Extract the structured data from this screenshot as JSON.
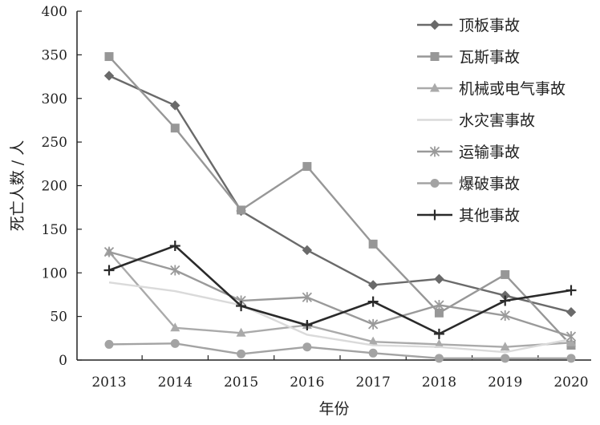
{
  "chart_data": {
    "type": "line",
    "title": "",
    "xlabel": "年份",
    "ylabel": "死亡人数 / 人",
    "categories": [
      "2013",
      "2014",
      "2015",
      "2016",
      "2017",
      "2018",
      "2019",
      "2020"
    ],
    "ylim": [
      0,
      400
    ],
    "yticks": [
      0,
      50,
      100,
      150,
      200,
      250,
      300,
      350,
      400
    ],
    "grid": false,
    "legend_position": "top-right",
    "series": [
      {
        "name": "顶板事故",
        "marker": "diamond",
        "color": "#6a6a6a",
        "values": [
          326,
          292,
          171,
          126,
          86,
          93,
          74,
          55
        ]
      },
      {
        "name": "瓦斯事故",
        "marker": "square",
        "color": "#979797",
        "values": [
          348,
          266,
          172,
          222,
          133,
          54,
          98,
          17
        ]
      },
      {
        "name": "机械或电气事故",
        "marker": "triangle",
        "color": "#aaaaaa",
        "values": [
          124,
          37,
          31,
          40,
          21,
          18,
          15,
          20
        ]
      },
      {
        "name": "水灾害事故",
        "marker": "none",
        "color": "#dadada",
        "values": [
          89,
          79,
          63,
          29,
          17,
          15,
          9,
          24
        ]
      },
      {
        "name": "运输事故",
        "marker": "x",
        "color": "#9a9a9a",
        "values": [
          124,
          103,
          68,
          72,
          41,
          63,
          51,
          27
        ]
      },
      {
        "name": "爆破事故",
        "marker": "circle",
        "color": "#a3a3a3",
        "values": [
          18,
          19,
          7,
          15,
          8,
          2,
          2,
          2
        ]
      },
      {
        "name": "其他事故",
        "marker": "plus",
        "color": "#2a2a2a",
        "values": [
          103,
          131,
          62,
          40,
          67,
          30,
          68,
          80
        ]
      }
    ]
  }
}
